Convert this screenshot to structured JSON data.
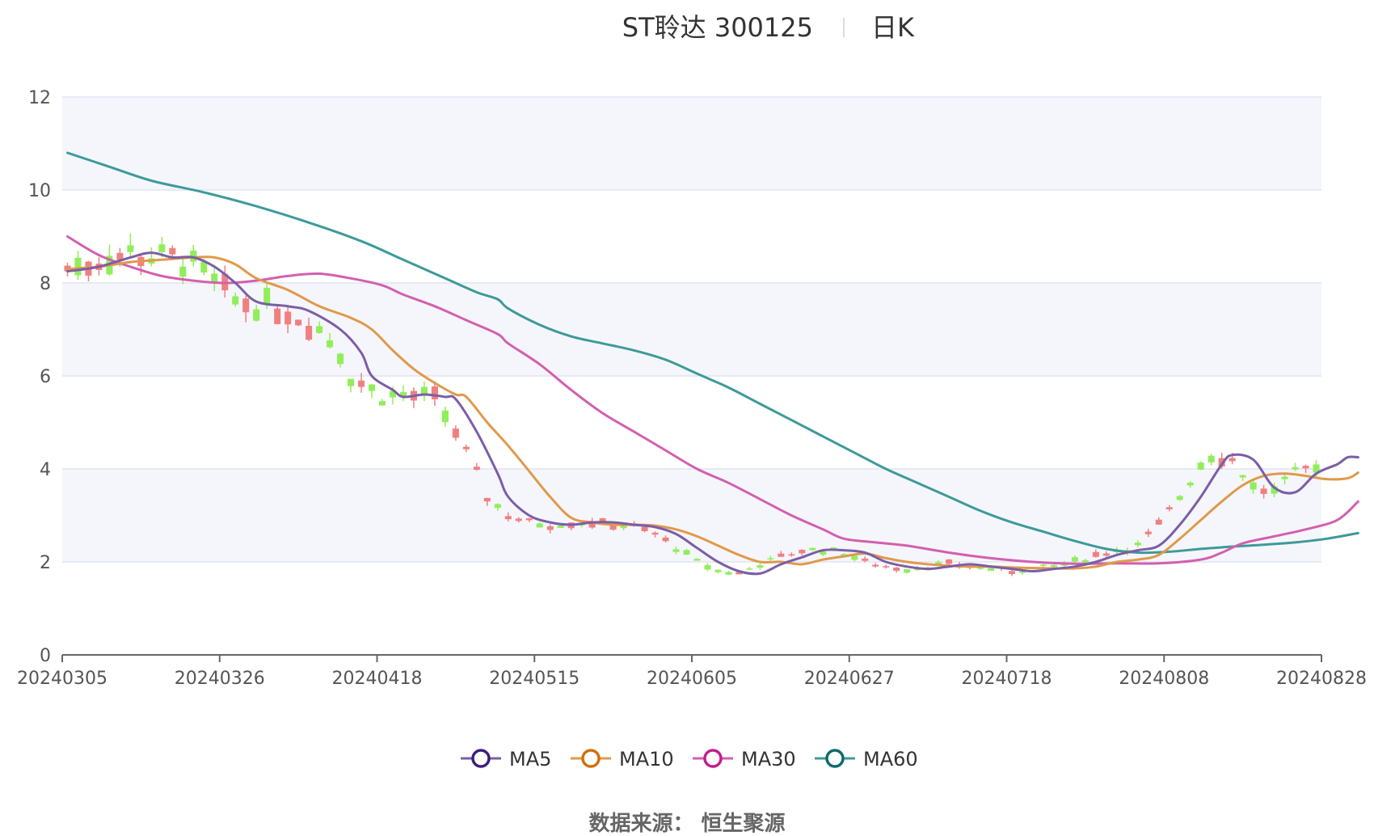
{
  "header": {
    "title": "ST聆达 300125",
    "period": "日K"
  },
  "source": "数据来源： 恒生聚源",
  "chart_data": {
    "type": "candlestick",
    "y_range": [
      0,
      12
    ],
    "y_ticks": [
      "0",
      "2",
      "4",
      "6",
      "8",
      "10",
      "12"
    ],
    "x_tick_labels": [
      "20240305",
      "20240326",
      "20240418",
      "20240515",
      "20240605",
      "20240627",
      "20240718",
      "20240808",
      "20240828"
    ],
    "n_days": 120,
    "up_color": "#f08080",
    "down_color": "#90ee5a",
    "series": [
      {
        "name": "MA5",
        "color": "#7b5ea8",
        "marker": "#3a1f7a",
        "points": [
          [
            0,
            8.25
          ],
          [
            3,
            8.35
          ],
          [
            6,
            8.55
          ],
          [
            8,
            8.65
          ],
          [
            10,
            8.55
          ],
          [
            12,
            8.55
          ],
          [
            14,
            8.35
          ],
          [
            16,
            8.0
          ],
          [
            18,
            7.6
          ],
          [
            21,
            7.5
          ],
          [
            23,
            7.4
          ],
          [
            26,
            7.0
          ],
          [
            28,
            6.5
          ],
          [
            29,
            6.0
          ],
          [
            31,
            5.7
          ],
          [
            32,
            5.55
          ],
          [
            34,
            5.6
          ],
          [
            36,
            5.55
          ],
          [
            37,
            5.5
          ],
          [
            39,
            4.8
          ],
          [
            41,
            3.9
          ],
          [
            42,
            3.4
          ],
          [
            44,
            3.0
          ],
          [
            46,
            2.85
          ],
          [
            48,
            2.8
          ],
          [
            50,
            2.85
          ],
          [
            52,
            2.85
          ],
          [
            54,
            2.8
          ],
          [
            56,
            2.75
          ],
          [
            58,
            2.6
          ],
          [
            60,
            2.3
          ],
          [
            62,
            2.0
          ],
          [
            64,
            1.8
          ],
          [
            66,
            1.75
          ],
          [
            68,
            1.95
          ],
          [
            70,
            2.1
          ],
          [
            72,
            2.25
          ],
          [
            74,
            2.25
          ],
          [
            76,
            2.2
          ],
          [
            78,
            2.0
          ],
          [
            80,
            1.9
          ],
          [
            82,
            1.85
          ],
          [
            84,
            1.9
          ],
          [
            86,
            1.95
          ],
          [
            88,
            1.9
          ],
          [
            90,
            1.85
          ],
          [
            92,
            1.8
          ],
          [
            94,
            1.85
          ],
          [
            96,
            1.9
          ],
          [
            98,
            2.0
          ],
          [
            100,
            2.15
          ],
          [
            102,
            2.25
          ],
          [
            104,
            2.35
          ],
          [
            106,
            2.8
          ],
          [
            108,
            3.4
          ],
          [
            110,
            4.1
          ],
          [
            111,
            4.3
          ],
          [
            113,
            4.2
          ],
          [
            115,
            3.6
          ],
          [
            117,
            3.5
          ],
          [
            119,
            3.9
          ],
          [
            121,
            4.1
          ],
          [
            122,
            4.25
          ],
          [
            123,
            4.25
          ]
        ]
      },
      {
        "name": "MA10",
        "color": "#e0994a",
        "marker": "#d0700e",
        "points": [
          [
            0,
            8.3
          ],
          [
            3,
            8.35
          ],
          [
            6,
            8.45
          ],
          [
            9,
            8.5
          ],
          [
            12,
            8.55
          ],
          [
            14,
            8.55
          ],
          [
            16,
            8.4
          ],
          [
            18,
            8.1
          ],
          [
            21,
            7.85
          ],
          [
            24,
            7.5
          ],
          [
            27,
            7.25
          ],
          [
            29,
            7.0
          ],
          [
            31,
            6.55
          ],
          [
            33,
            6.15
          ],
          [
            35,
            5.85
          ],
          [
            37,
            5.6
          ],
          [
            38,
            5.55
          ],
          [
            40,
            5.0
          ],
          [
            42,
            4.5
          ],
          [
            44,
            3.95
          ],
          [
            46,
            3.4
          ],
          [
            48,
            2.95
          ],
          [
            50,
            2.85
          ],
          [
            52,
            2.8
          ],
          [
            54,
            2.8
          ],
          [
            56,
            2.78
          ],
          [
            58,
            2.7
          ],
          [
            60,
            2.55
          ],
          [
            62,
            2.35
          ],
          [
            64,
            2.15
          ],
          [
            66,
            2.0
          ],
          [
            68,
            2.0
          ],
          [
            70,
            1.95
          ],
          [
            72,
            2.05
          ],
          [
            74,
            2.12
          ],
          [
            76,
            2.18
          ],
          [
            78,
            2.08
          ],
          [
            80,
            2.0
          ],
          [
            82,
            1.95
          ],
          [
            84,
            1.92
          ],
          [
            86,
            1.9
          ],
          [
            88,
            1.9
          ],
          [
            90,
            1.88
          ],
          [
            92,
            1.87
          ],
          [
            94,
            1.86
          ],
          [
            96,
            1.86
          ],
          [
            98,
            1.9
          ],
          [
            100,
            2.0
          ],
          [
            102,
            2.05
          ],
          [
            104,
            2.15
          ],
          [
            106,
            2.5
          ],
          [
            108,
            2.9
          ],
          [
            110,
            3.3
          ],
          [
            112,
            3.65
          ],
          [
            114,
            3.85
          ],
          [
            116,
            3.9
          ],
          [
            118,
            3.85
          ],
          [
            120,
            3.78
          ],
          [
            122,
            3.8
          ],
          [
            123,
            3.92
          ]
        ]
      },
      {
        "name": "MA30",
        "color": "#d35fb0",
        "marker": "#c0208f",
        "points": [
          [
            0,
            9.0
          ],
          [
            3,
            8.6
          ],
          [
            6,
            8.35
          ],
          [
            9,
            8.15
          ],
          [
            12,
            8.05
          ],
          [
            15,
            8.0
          ],
          [
            18,
            8.05
          ],
          [
            21,
            8.15
          ],
          [
            24,
            8.2
          ],
          [
            27,
            8.1
          ],
          [
            30,
            7.95
          ],
          [
            32,
            7.75
          ],
          [
            35,
            7.5
          ],
          [
            38,
            7.2
          ],
          [
            41,
            6.9
          ],
          [
            42,
            6.7
          ],
          [
            45,
            6.25
          ],
          [
            48,
            5.7
          ],
          [
            51,
            5.2
          ],
          [
            54,
            4.8
          ],
          [
            57,
            4.4
          ],
          [
            60,
            4.0
          ],
          [
            63,
            3.7
          ],
          [
            66,
            3.35
          ],
          [
            69,
            3.0
          ],
          [
            72,
            2.7
          ],
          [
            74,
            2.5
          ],
          [
            77,
            2.42
          ],
          [
            80,
            2.35
          ],
          [
            84,
            2.2
          ],
          [
            88,
            2.08
          ],
          [
            92,
            2.0
          ],
          [
            96,
            1.96
          ],
          [
            100,
            1.97
          ],
          [
            104,
            1.97
          ],
          [
            108,
            2.05
          ],
          [
            110,
            2.2
          ],
          [
            112,
            2.4
          ],
          [
            115,
            2.55
          ],
          [
            118,
            2.7
          ],
          [
            121,
            2.9
          ],
          [
            123,
            3.3
          ]
        ]
      },
      {
        "name": "MA60",
        "color": "#3d9a9a",
        "marker": "#0f6a6a",
        "points": [
          [
            0,
            10.8
          ],
          [
            4,
            10.5
          ],
          [
            8,
            10.2
          ],
          [
            13,
            9.95
          ],
          [
            18,
            9.65
          ],
          [
            23,
            9.3
          ],
          [
            28,
            8.9
          ],
          [
            32,
            8.5
          ],
          [
            36,
            8.1
          ],
          [
            39,
            7.8
          ],
          [
            41,
            7.65
          ],
          [
            42,
            7.45
          ],
          [
            45,
            7.1
          ],
          [
            48,
            6.85
          ],
          [
            51,
            6.7
          ],
          [
            54,
            6.55
          ],
          [
            57,
            6.35
          ],
          [
            60,
            6.05
          ],
          [
            63,
            5.75
          ],
          [
            66,
            5.4
          ],
          [
            69,
            5.05
          ],
          [
            72,
            4.7
          ],
          [
            75,
            4.35
          ],
          [
            78,
            4.0
          ],
          [
            81,
            3.7
          ],
          [
            84,
            3.4
          ],
          [
            87,
            3.1
          ],
          [
            90,
            2.85
          ],
          [
            93,
            2.65
          ],
          [
            96,
            2.45
          ],
          [
            99,
            2.28
          ],
          [
            102,
            2.2
          ],
          [
            105,
            2.22
          ],
          [
            108,
            2.28
          ],
          [
            111,
            2.33
          ],
          [
            114,
            2.37
          ],
          [
            117,
            2.42
          ],
          [
            120,
            2.5
          ],
          [
            123,
            2.62
          ]
        ]
      }
    ]
  }
}
